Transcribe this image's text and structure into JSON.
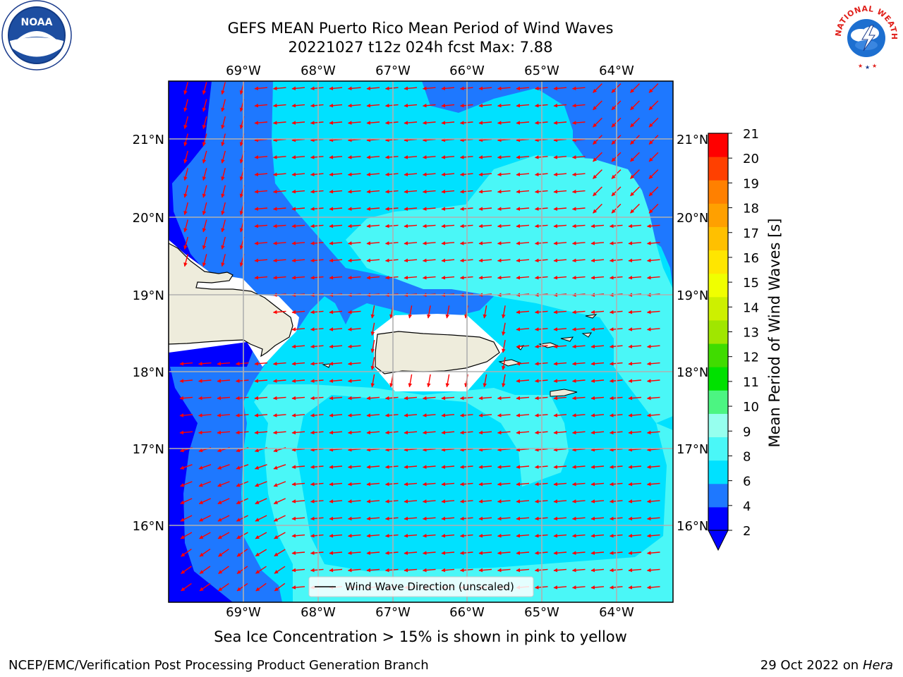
{
  "title": {
    "line1": "GEFS MEAN Puerto Rico Mean Period of Wind Waves",
    "line2": "20221027 t12z 024h fcst   Max: 7.88"
  },
  "map": {
    "lon_range": [
      -69.9,
      -63.15
    ],
    "lat_range": [
      15.05,
      21.75
    ],
    "lon_ticks": [
      "69°W",
      "68°W",
      "67°W",
      "66°W",
      "65°W",
      "64°W"
    ],
    "lat_ticks": [
      "21°N",
      "20°N",
      "19°N",
      "18°N",
      "17°N",
      "16°N"
    ],
    "grid": true,
    "arrow_color": "#ff0000",
    "land_color": "#eeecdc",
    "legend": "Wind Wave Direction (unscaled)",
    "legend_position": "bottom-center"
  },
  "colorbar": {
    "label": "Mean Period of Wind Waves [s]",
    "ticks": [
      "2",
      "4",
      "6",
      "8",
      "9",
      "10",
      "11",
      "12",
      "13",
      "14",
      "15",
      "16",
      "17",
      "18",
      "19",
      "20",
      "21"
    ],
    "colors": [
      "#0000ff",
      "#1e78ff",
      "#00e1ff",
      "#4af7f7",
      "#96ffee",
      "#4cf582",
      "#00e100",
      "#40dc00",
      "#a0e600",
      "#cdf000",
      "#f0ff00",
      "#ffe600",
      "#ffc000",
      "#ffa000",
      "#ff8000",
      "#ff4000",
      "#ff0000"
    ]
  },
  "caption": "Sea Ice Concentration > 15% is shown in pink to yellow",
  "footer": {
    "credit": "NCEP/EMC/Verification Post Processing Product Generation Branch",
    "date_prefix": "29 Oct 2022 on ",
    "date_host": "Hera"
  },
  "logos": {
    "left": {
      "icon": "noaa-logo",
      "text": "NOAA"
    },
    "right": {
      "icon": "nws-logo",
      "text": "NATIONAL WEATHER SERVICE"
    }
  },
  "colors": {
    "deep": "#0000ff",
    "mid": "#1e78ff",
    "light": "#00e1ff",
    "pale": "#4af7f7"
  }
}
